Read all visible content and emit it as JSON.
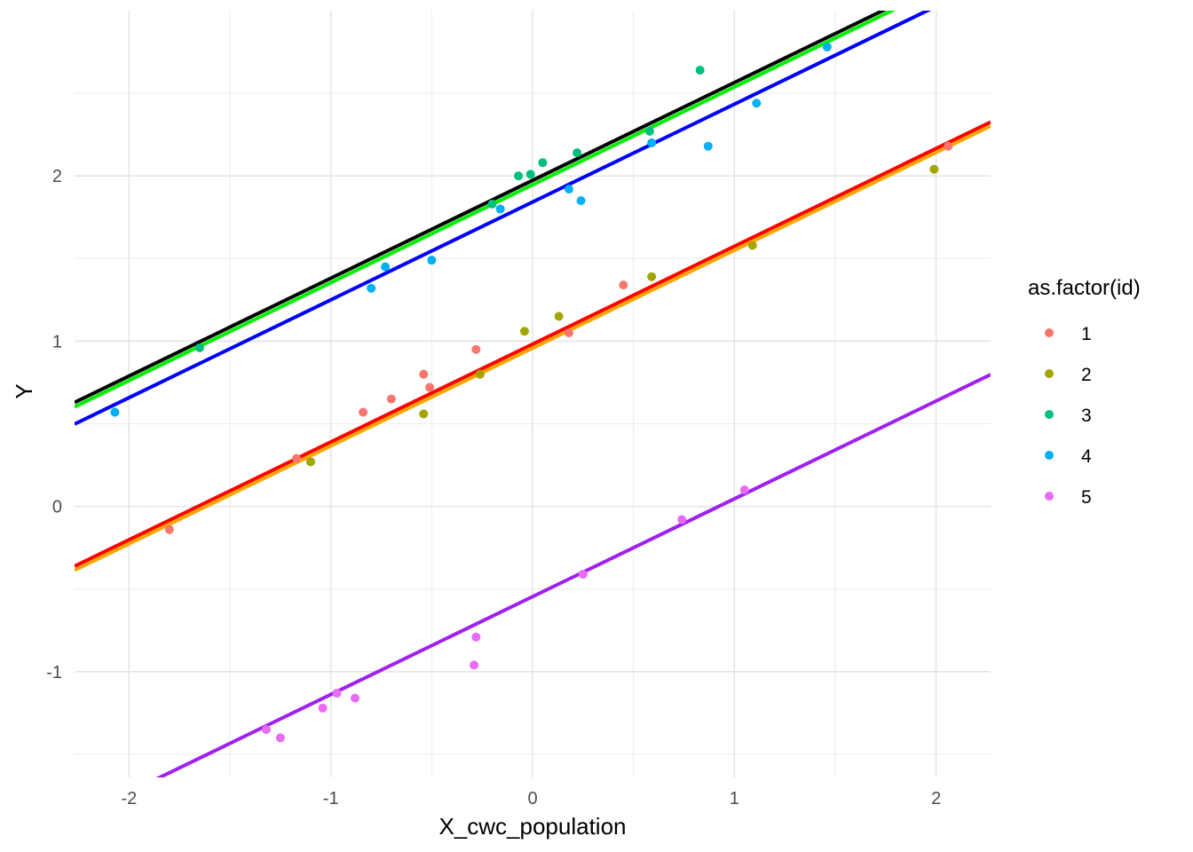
{
  "chart_data": {
    "type": "scatter",
    "xlabel": "X_cwc_population",
    "ylabel": "Y",
    "xlim": [
      -2.27,
      2.27
    ],
    "ylim": [
      -1.64,
      3.0
    ],
    "x_ticks": [
      -2,
      -1,
      0,
      1,
      2
    ],
    "y_ticks": [
      -1,
      0,
      1,
      2
    ],
    "grid": true,
    "legend": {
      "title": "as.factor(id)",
      "position": "right",
      "entries": [
        "1",
        "2",
        "3",
        "4",
        "5"
      ]
    },
    "series": [
      {
        "name": "1",
        "color": "#F8766D",
        "points": [
          {
            "x": -1.8,
            "y": -0.14
          },
          {
            "x": -1.17,
            "y": 0.29
          },
          {
            "x": -0.84,
            "y": 0.57
          },
          {
            "x": -0.7,
            "y": 0.65
          },
          {
            "x": -0.54,
            "y": 0.8
          },
          {
            "x": -0.51,
            "y": 0.72
          },
          {
            "x": -0.28,
            "y": 0.95
          },
          {
            "x": 0.18,
            "y": 1.05
          },
          {
            "x": 0.45,
            "y": 1.34
          },
          {
            "x": 2.06,
            "y": 2.18
          }
        ]
      },
      {
        "name": "2",
        "color": "#A3A500",
        "points": [
          {
            "x": -1.1,
            "y": 0.27
          },
          {
            "x": -0.54,
            "y": 0.56
          },
          {
            "x": -0.26,
            "y": 0.8
          },
          {
            "x": -0.04,
            "y": 1.06
          },
          {
            "x": 0.13,
            "y": 1.15
          },
          {
            "x": 0.59,
            "y": 1.39
          },
          {
            "x": 1.09,
            "y": 1.58
          },
          {
            "x": 1.99,
            "y": 2.04
          }
        ]
      },
      {
        "name": "3",
        "color": "#00BF7D",
        "points": [
          {
            "x": -1.65,
            "y": 0.96
          },
          {
            "x": -0.2,
            "y": 1.83
          },
          {
            "x": -0.07,
            "y": 2.0
          },
          {
            "x": -0.01,
            "y": 2.01
          },
          {
            "x": 0.05,
            "y": 2.08
          },
          {
            "x": 0.22,
            "y": 2.14
          },
          {
            "x": 0.58,
            "y": 2.27
          },
          {
            "x": 0.83,
            "y": 2.64
          }
        ]
      },
      {
        "name": "4",
        "color": "#00B0F6",
        "points": [
          {
            "x": -2.07,
            "y": 0.57
          },
          {
            "x": -0.8,
            "y": 1.32
          },
          {
            "x": -0.73,
            "y": 1.45
          },
          {
            "x": -0.5,
            "y": 1.49
          },
          {
            "x": -0.16,
            "y": 1.8
          },
          {
            "x": 0.18,
            "y": 1.92
          },
          {
            "x": 0.24,
            "y": 1.85
          },
          {
            "x": 0.59,
            "y": 2.2
          },
          {
            "x": 0.87,
            "y": 2.18
          },
          {
            "x": 1.11,
            "y": 2.44
          },
          {
            "x": 1.46,
            "y": 2.78
          }
        ]
      },
      {
        "name": "5",
        "color": "#E76BF3",
        "points": [
          {
            "x": -1.32,
            "y": -1.35
          },
          {
            "x": -1.25,
            "y": -1.4
          },
          {
            "x": -1.04,
            "y": -1.22
          },
          {
            "x": -0.97,
            "y": -1.13
          },
          {
            "x": -0.88,
            "y": -1.16
          },
          {
            "x": -0.29,
            "y": -0.96
          },
          {
            "x": -0.28,
            "y": -0.79
          },
          {
            "x": 0.25,
            "y": -0.41
          },
          {
            "x": 0.74,
            "y": -0.08
          },
          {
            "x": 1.05,
            "y": 0.1
          }
        ]
      }
    ],
    "lines": [
      {
        "color": "#000000",
        "intercept": 1.973,
        "slope": 0.592
      },
      {
        "color": "#00EE00",
        "intercept": 1.946,
        "slope": 0.592
      },
      {
        "color": "#0000FF",
        "intercept": 1.842,
        "slope": 0.592
      },
      {
        "color": "#FF0000",
        "intercept": 0.982,
        "slope": 0.592
      },
      {
        "color": "#FFA500",
        "intercept": 0.958,
        "slope": 0.592
      },
      {
        "color": "#A020F0",
        "intercept": -0.546,
        "slope": 0.592
      }
    ]
  }
}
